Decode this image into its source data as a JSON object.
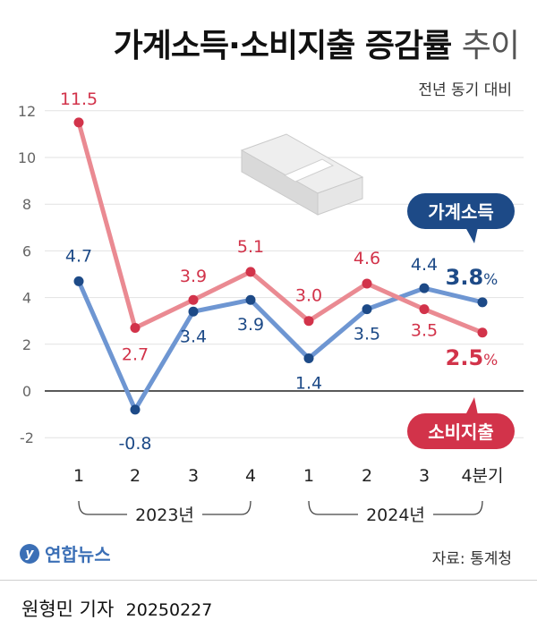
{
  "title_main": "가계소득·소비지출 증감률",
  "title_light": "추이",
  "subtitle": "전년 동기 대비",
  "unit": "%",
  "source": "자료: 통계청",
  "logo_text": "연합뉴스",
  "credit": "원형민 기자",
  "date": "20250227",
  "chart_data": {
    "type": "line",
    "categories": [
      "1",
      "2",
      "3",
      "4",
      "1",
      "2",
      "3",
      "4분기"
    ],
    "year_groups": [
      {
        "label": "2023년",
        "from": 0,
        "to": 3
      },
      {
        "label": "2024년",
        "from": 4,
        "to": 7
      }
    ],
    "ylim": [
      -2,
      12
    ],
    "yticks": [
      -2,
      0,
      2,
      4,
      6,
      8,
      10,
      12
    ],
    "series": [
      {
        "name": "가계소득",
        "color": "#6e96d2",
        "label_color": "#1d4a87",
        "values": [
          4.7,
          -0.8,
          3.4,
          3.9,
          1.4,
          3.5,
          4.4,
          3.8
        ],
        "labels": [
          "4.7",
          "-0.8",
          "3.4",
          "3.9",
          "1.4",
          "3.5",
          "4.4",
          "3.8"
        ]
      },
      {
        "name": "소비지출",
        "color": "#ea8a92",
        "label_color": "#d2334a",
        "values": [
          11.5,
          2.7,
          3.9,
          5.1,
          3.0,
          4.6,
          3.5,
          2.5
        ],
        "labels": [
          "11.5",
          "2.7",
          "3.9",
          "5.1",
          "3.0",
          "4.6",
          "3.5",
          "2.5"
        ]
      }
    ]
  }
}
